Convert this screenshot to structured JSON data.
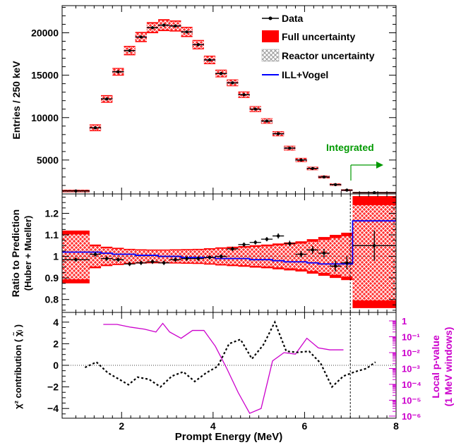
{
  "chart_data": [
    {
      "panel": "spectrum",
      "type": "scatter",
      "ylabel": "Entries / 250 keV",
      "xlim": [
        0.7,
        8.0
      ],
      "ylim": [
        1000,
        23200
      ],
      "yticks": [
        "5000",
        "10000",
        "15000",
        "20000"
      ],
      "ytick_values": [
        5000,
        10000,
        15000,
        20000
      ],
      "legend": [
        "Data",
        "Full uncertainty",
        "Reactor uncertainty",
        "ILL+Vogel"
      ],
      "legend_position": "top-right",
      "annotation": "Integrated",
      "bins": [
        {
          "x0": 0.7,
          "x1": 1.3,
          "data": 1350,
          "full_err": 150,
          "reactor_err": 90
        },
        {
          "x0": 1.3,
          "x1": 1.55,
          "data": 8800,
          "full_err": 400,
          "reactor_err": 300
        },
        {
          "x0": 1.55,
          "x1": 1.8,
          "data": 12200,
          "full_err": 450,
          "reactor_err": 350
        },
        {
          "x0": 1.8,
          "x1": 2.05,
          "data": 15400,
          "full_err": 450,
          "reactor_err": 350
        },
        {
          "x0": 2.05,
          "x1": 2.3,
          "data": 17900,
          "full_err": 550,
          "reactor_err": 430
        },
        {
          "x0": 2.3,
          "x1": 2.55,
          "data": 19500,
          "full_err": 600,
          "reactor_err": 470
        },
        {
          "x0": 2.55,
          "x1": 2.8,
          "data": 20600,
          "full_err": 650,
          "reactor_err": 500
        },
        {
          "x0": 2.8,
          "x1": 3.05,
          "data": 20900,
          "full_err": 700,
          "reactor_err": 550
        },
        {
          "x0": 3.05,
          "x1": 3.3,
          "data": 20800,
          "full_err": 650,
          "reactor_err": 520
        },
        {
          "x0": 3.3,
          "x1": 3.55,
          "data": 20100,
          "full_err": 600,
          "reactor_err": 480
        },
        {
          "x0": 3.55,
          "x1": 3.8,
          "data": 18600,
          "full_err": 550,
          "reactor_err": 450
        },
        {
          "x0": 3.8,
          "x1": 4.05,
          "data": 16800,
          "full_err": 500,
          "reactor_err": 400
        },
        {
          "x0": 4.05,
          "x1": 4.3,
          "data": 15200,
          "full_err": 450,
          "reactor_err": 360
        },
        {
          "x0": 4.3,
          "x1": 4.55,
          "data": 14100,
          "full_err": 400,
          "reactor_err": 320
        },
        {
          "x0": 4.55,
          "x1": 4.8,
          "data": 12700,
          "full_err": 380,
          "reactor_err": 300
        },
        {
          "x0": 4.8,
          "x1": 5.05,
          "data": 11000,
          "full_err": 350,
          "reactor_err": 280
        },
        {
          "x0": 5.05,
          "x1": 5.3,
          "data": 9600,
          "full_err": 320,
          "reactor_err": 260
        },
        {
          "x0": 5.3,
          "x1": 5.55,
          "data": 8100,
          "full_err": 300,
          "reactor_err": 240
        },
        {
          "x0": 5.55,
          "x1": 5.8,
          "data": 6400,
          "full_err": 280,
          "reactor_err": 220
        },
        {
          "x0": 5.8,
          "x1": 6.05,
          "data": 5000,
          "full_err": 250,
          "reactor_err": 200
        },
        {
          "x0": 6.05,
          "x1": 6.3,
          "data": 4000,
          "full_err": 200,
          "reactor_err": 160
        },
        {
          "x0": 6.3,
          "x1": 6.55,
          "data": 3000,
          "full_err": 170,
          "reactor_err": 130
        },
        {
          "x0": 6.55,
          "x1": 6.8,
          "data": 2100,
          "full_err": 140,
          "reactor_err": 110
        },
        {
          "x0": 6.8,
          "x1": 7.05,
          "data": 1450,
          "full_err": 110,
          "reactor_err": 90
        },
        {
          "x0": 7.05,
          "x1": 8.0,
          "data": 1150,
          "full_err": 80,
          "reactor_err": 60
        }
      ]
    },
    {
      "panel": "ratio",
      "type": "line",
      "ylabel": [
        "Ratio to Prediction",
        "(Huber + Mueller)"
      ],
      "xlim": [
        0.7,
        8.0
      ],
      "ylim": [
        0.74,
        1.29
      ],
      "yticks": [
        "0.8",
        "0.9",
        "1",
        "1.1",
        "1.2"
      ],
      "ytick_values": [
        0.8,
        0.9,
        1.0,
        1.1,
        1.2
      ],
      "bins": [
        {
          "x0": 0.7,
          "x1": 1.3,
          "ratio": 0.985,
          "ratio_err": 0.01,
          "band_lo": 0.875,
          "band_hi": 1.12,
          "ill_vogel": 1.02
        },
        {
          "x0": 1.3,
          "x1": 1.55,
          "ratio": 1.01,
          "ratio_err": 0.01,
          "band_lo": 0.945,
          "band_hi": 1.055,
          "ill_vogel": 1.02
        },
        {
          "x0": 1.55,
          "x1": 1.8,
          "ratio": 0.99,
          "ratio_err": 0.01,
          "band_lo": 0.955,
          "band_hi": 1.045,
          "ill_vogel": 1.015
        },
        {
          "x0": 1.8,
          "x1": 2.05,
          "ratio": 0.985,
          "ratio_err": 0.01,
          "band_lo": 0.96,
          "band_hi": 1.04,
          "ill_vogel": 1.01
        },
        {
          "x0": 2.05,
          "x1": 2.3,
          "ratio": 0.965,
          "ratio_err": 0.01,
          "band_lo": 0.965,
          "band_hi": 1.035,
          "ill_vogel": 1.01
        },
        {
          "x0": 2.3,
          "x1": 2.55,
          "ratio": 0.97,
          "ratio_err": 0.01,
          "band_lo": 0.967,
          "band_hi": 1.033,
          "ill_vogel": 1.005
        },
        {
          "x0": 2.55,
          "x1": 2.8,
          "ratio": 0.975,
          "ratio_err": 0.01,
          "band_lo": 0.968,
          "band_hi": 1.032,
          "ill_vogel": 1.005
        },
        {
          "x0": 2.8,
          "x1": 3.05,
          "ratio": 0.97,
          "ratio_err": 0.01,
          "band_lo": 0.968,
          "band_hi": 1.032,
          "ill_vogel": 1.0
        },
        {
          "x0": 3.05,
          "x1": 3.3,
          "ratio": 0.985,
          "ratio_err": 0.01,
          "band_lo": 0.967,
          "band_hi": 1.033,
          "ill_vogel": 1.0
        },
        {
          "x0": 3.3,
          "x1": 3.55,
          "ratio": 0.99,
          "ratio_err": 0.01,
          "band_lo": 0.966,
          "band_hi": 1.034,
          "ill_vogel": 0.995
        },
        {
          "x0": 3.55,
          "x1": 3.8,
          "ratio": 0.99,
          "ratio_err": 0.01,
          "band_lo": 0.965,
          "band_hi": 1.035,
          "ill_vogel": 0.995
        },
        {
          "x0": 3.8,
          "x1": 4.05,
          "ratio": 0.995,
          "ratio_err": 0.01,
          "band_lo": 0.962,
          "band_hi": 1.038,
          "ill_vogel": 0.995
        },
        {
          "x0": 4.05,
          "x1": 4.3,
          "ratio": 1.0,
          "ratio_err": 0.01,
          "band_lo": 0.958,
          "band_hi": 1.042,
          "ill_vogel": 0.99
        },
        {
          "x0": 4.3,
          "x1": 4.55,
          "ratio": 1.035,
          "ratio_err": 0.01,
          "band_lo": 0.955,
          "band_hi": 1.045,
          "ill_vogel": 0.99
        },
        {
          "x0": 4.55,
          "x1": 4.8,
          "ratio": 1.055,
          "ratio_err": 0.01,
          "band_lo": 0.952,
          "band_hi": 1.048,
          "ill_vogel": 0.99
        },
        {
          "x0": 4.8,
          "x1": 5.05,
          "ratio": 1.065,
          "ratio_err": 0.01,
          "band_lo": 0.948,
          "band_hi": 1.052,
          "ill_vogel": 0.985
        },
        {
          "x0": 5.05,
          "x1": 5.3,
          "ratio": 1.08,
          "ratio_err": 0.01,
          "band_lo": 0.945,
          "band_hi": 1.055,
          "ill_vogel": 0.985
        },
        {
          "x0": 5.3,
          "x1": 5.55,
          "ratio": 1.095,
          "ratio_err": 0.012,
          "band_lo": 0.94,
          "band_hi": 1.06,
          "ill_vogel": 0.98
        },
        {
          "x0": 5.55,
          "x1": 5.8,
          "ratio": 1.06,
          "ratio_err": 0.013,
          "band_lo": 0.935,
          "band_hi": 1.065,
          "ill_vogel": 0.975
        },
        {
          "x0": 5.8,
          "x1": 6.05,
          "ratio": 1.01,
          "ratio_err": 0.015,
          "band_lo": 0.93,
          "band_hi": 1.07,
          "ill_vogel": 0.975
        },
        {
          "x0": 6.05,
          "x1": 6.3,
          "ratio": 1.03,
          "ratio_err": 0.018,
          "band_lo": 0.92,
          "band_hi": 1.08,
          "ill_vogel": 0.97
        },
        {
          "x0": 6.3,
          "x1": 6.55,
          "ratio": 1.015,
          "ratio_err": 0.02,
          "band_lo": 0.91,
          "band_hi": 1.09,
          "ill_vogel": 0.965
        },
        {
          "x0": 6.55,
          "x1": 6.8,
          "ratio": 0.955,
          "ratio_err": 0.025,
          "band_lo": 0.9,
          "band_hi": 1.1,
          "ill_vogel": 0.965
        },
        {
          "x0": 6.8,
          "x1": 7.05,
          "ratio": 0.97,
          "ratio_err": 0.03,
          "band_lo": 0.89,
          "band_hi": 1.11,
          "ill_vogel": 0.965
        },
        {
          "x0": 7.05,
          "x1": 8.0,
          "ratio": 1.05,
          "ratio_err": 0.07,
          "band_lo": 0.76,
          "band_hi": 1.28,
          "ill_vogel": 1.165
        }
      ]
    },
    {
      "panel": "chi2",
      "type": "line",
      "xlabel": "Prompt Energy (MeV)",
      "ylabel_left": "χ² contribution  ( χ̃ᵢ )",
      "ylabel_right": [
        "Local p-value",
        "(1 MeV windows)"
      ],
      "xlim": [
        0.7,
        8.0
      ],
      "xticks": [
        "2",
        "4",
        "6",
        "8"
      ],
      "xtick_values": [
        2,
        4,
        6,
        8
      ],
      "ylim": [
        -4.9,
        4.9
      ],
      "yticks": [
        "−4",
        "−2",
        "0",
        "2",
        "4"
      ],
      "ytick_values": [
        -4,
        -2,
        0,
        2,
        4
      ],
      "right_axis_log_range": [
        1e-06,
        1
      ],
      "right_yticks": [
        "10⁻⁶",
        "10⁻⁵",
        "10⁻⁴",
        "10⁻³",
        "10⁻²",
        "10⁻¹",
        "1"
      ],
      "right_ytick_values": [
        1e-06,
        1e-05,
        0.0001,
        0.001,
        0.01,
        0.1,
        1
      ],
      "chi": {
        "x": [
          1.2,
          1.45,
          1.7,
          1.95,
          2.15,
          2.35,
          2.6,
          2.85,
          3.1,
          3.35,
          3.6,
          3.85,
          4.1,
          4.35,
          4.6,
          4.85,
          5.1,
          5.35,
          5.6,
          5.85,
          6.1,
          6.35,
          6.6,
          6.85,
          7.1,
          7.35,
          7.55
        ],
        "y": [
          -0.2,
          0.3,
          -0.7,
          -1.3,
          -1.8,
          -1.1,
          -1.3,
          -2.0,
          -1.0,
          -0.6,
          -1.5,
          -0.7,
          -0.1,
          2.0,
          2.4,
          0.6,
          1.9,
          4.0,
          1.3,
          1.2,
          1.3,
          0.2,
          -2.0,
          -1.0,
          -0.6,
          -0.3,
          0.3
        ]
      },
      "pvalue": {
        "x": [
          1.6,
          1.9,
          2.2,
          2.5,
          2.75,
          2.9,
          3.05,
          3.3,
          3.55,
          3.8,
          4.05,
          4.3,
          4.55,
          4.8,
          5.05,
          5.3,
          5.55,
          5.8,
          6.05,
          6.3,
          6.55,
          6.8,
          6.85
        ],
        "y": [
          0.6,
          0.6,
          0.4,
          0.3,
          0.2,
          0.7,
          0.2,
          0.08,
          0.25,
          0.25,
          0.025,
          0.001,
          3e-05,
          1.5e-06,
          3e-06,
          0.003,
          0.01,
          0.008,
          0.08,
          0.02,
          0.015,
          0.015,
          0.015
        ]
      }
    }
  ],
  "colors": {
    "data": "#000000",
    "full_uncertainty": "#ff0000",
    "reactor_uncertainty": "#b0b0b0",
    "ill_vogel": "#0000ff",
    "integrated": "#009900",
    "pvalue": "#cc00cc"
  }
}
